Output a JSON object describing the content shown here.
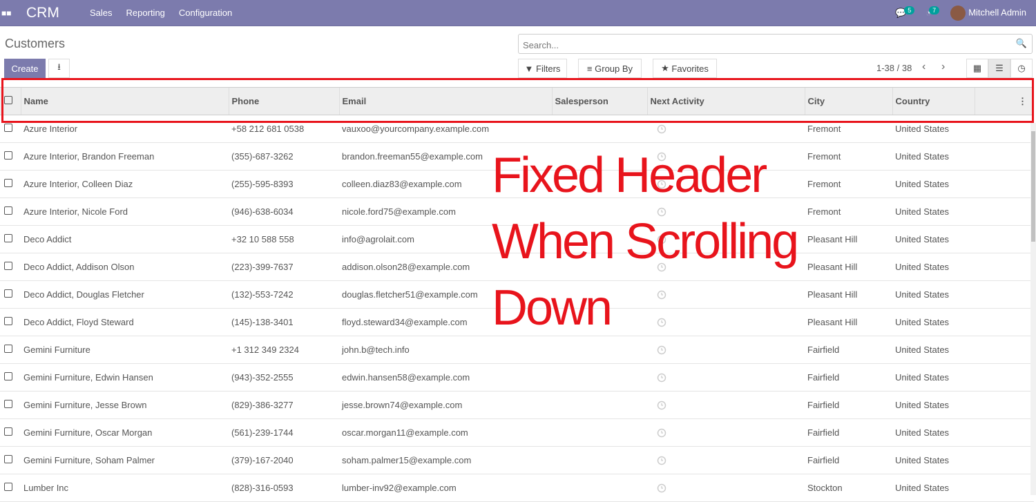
{
  "nav": {
    "brand": "CRM",
    "menus": [
      "Sales",
      "Reporting",
      "Configuration"
    ],
    "messages_count": "5",
    "activities_count": "7",
    "user": "Mitchell Admin"
  },
  "page": {
    "title": "Customers",
    "create_label": "Create",
    "search_placeholder": "Search...",
    "filters": "Filters",
    "group_by": "Group By",
    "favorites": "Favorites",
    "pager": "1-38 / 38"
  },
  "columns": [
    "Name",
    "Phone",
    "Email",
    "Salesperson",
    "Next Activity",
    "City",
    "Country"
  ],
  "rows": [
    [
      "Azure Interior",
      "+58 212 681 0538",
      "vauxoo@yourcompany.example.com",
      "",
      "",
      "Fremont",
      "United States"
    ],
    [
      "Azure Interior, Brandon Freeman",
      "(355)-687-3262",
      "brandon.freeman55@example.com",
      "",
      "",
      "Fremont",
      "United States"
    ],
    [
      "Azure Interior, Colleen Diaz",
      "(255)-595-8393",
      "colleen.diaz83@example.com",
      "",
      "",
      "Fremont",
      "United States"
    ],
    [
      "Azure Interior, Nicole Ford",
      "(946)-638-6034",
      "nicole.ford75@example.com",
      "",
      "",
      "Fremont",
      "United States"
    ],
    [
      "Deco Addict",
      "+32 10 588 558",
      "info@agrolait.com",
      "",
      "",
      "Pleasant Hill",
      "United States"
    ],
    [
      "Deco Addict, Addison Olson",
      "(223)-399-7637",
      "addison.olson28@example.com",
      "",
      "",
      "Pleasant Hill",
      "United States"
    ],
    [
      "Deco Addict, Douglas Fletcher",
      "(132)-553-7242",
      "douglas.fletcher51@example.com",
      "",
      "",
      "Pleasant Hill",
      "United States"
    ],
    [
      "Deco Addict, Floyd Steward",
      "(145)-138-3401",
      "floyd.steward34@example.com",
      "",
      "",
      "Pleasant Hill",
      "United States"
    ],
    [
      "Gemini Furniture",
      "+1 312 349 2324",
      "john.b@tech.info",
      "",
      "",
      "Fairfield",
      "United States"
    ],
    [
      "Gemini Furniture, Edwin Hansen",
      "(943)-352-2555",
      "edwin.hansen58@example.com",
      "",
      "",
      "Fairfield",
      "United States"
    ],
    [
      "Gemini Furniture, Jesse Brown",
      "(829)-386-3277",
      "jesse.brown74@example.com",
      "",
      "",
      "Fairfield",
      "United States"
    ],
    [
      "Gemini Furniture, Oscar Morgan",
      "(561)-239-1744",
      "oscar.morgan11@example.com",
      "",
      "",
      "Fairfield",
      "United States"
    ],
    [
      "Gemini Furniture, Soham Palmer",
      "(379)-167-2040",
      "soham.palmer15@example.com",
      "",
      "",
      "Fairfield",
      "United States"
    ],
    [
      "Lumber Inc",
      "(828)-316-0593",
      "lumber-inv92@example.com",
      "",
      "",
      "Stockton",
      "United States"
    ]
  ],
  "annotation": [
    "Fixed Header",
    "When Scrolling",
    "Down"
  ],
  "colors": {
    "nav": "#7c7bad",
    "annotation": "#e8141c",
    "badge": "#00a09d"
  }
}
